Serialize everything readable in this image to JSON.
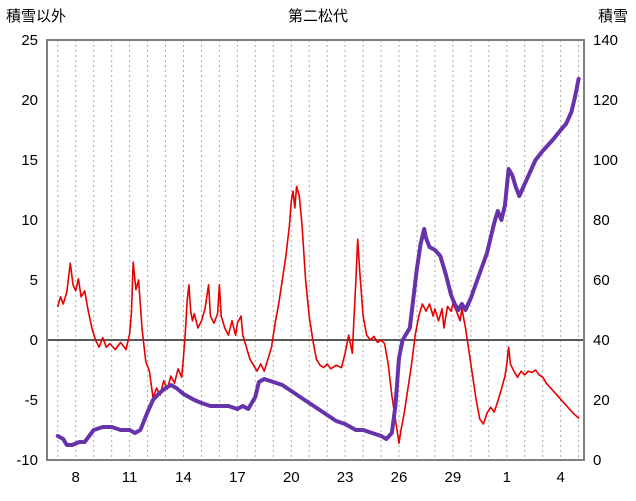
{
  "colors": {
    "temperature": "#e60000",
    "snow": "#6633aa",
    "frame": "#808080",
    "grid": "#aaaaaa",
    "zero_line": "#595959",
    "text": "#000000",
    "background": "#ffffff"
  },
  "chart_data": {
    "type": "line",
    "title": "第二松代",
    "left_axis": {
      "label": "積雪以外",
      "min": -10,
      "max": 25,
      "ticks": [
        25,
        20,
        15,
        10,
        5,
        0,
        -5,
        -10
      ]
    },
    "right_axis": {
      "label": "積雪",
      "min": 0,
      "max": 140,
      "ticks": [
        140,
        120,
        100,
        80,
        60,
        40,
        20,
        0
      ]
    },
    "x_axis": {
      "min": 6.4,
      "max": 36.3,
      "grid_interval": 1,
      "tick_days": [
        8,
        11,
        14,
        17,
        20,
        23,
        26,
        29,
        32,
        35
      ],
      "tick_labels": [
        "8",
        "11",
        "14",
        "17",
        "20",
        "23",
        "26",
        "29",
        "1",
        "4"
      ]
    },
    "series": [
      {
        "name": "積雪以外",
        "id": "temperature-line",
        "axis": "left",
        "color": "#e60000",
        "width": 1.6,
        "points": [
          [
            7.0,
            2.8
          ],
          [
            7.15,
            3.6
          ],
          [
            7.3,
            3.0
          ],
          [
            7.5,
            4.0
          ],
          [
            7.7,
            6.4
          ],
          [
            7.85,
            4.6
          ],
          [
            8.0,
            4.1
          ],
          [
            8.15,
            5.1
          ],
          [
            8.3,
            3.6
          ],
          [
            8.5,
            4.1
          ],
          [
            8.7,
            2.4
          ],
          [
            8.9,
            1.0
          ],
          [
            9.1,
            0.0
          ],
          [
            9.3,
            -0.6
          ],
          [
            9.5,
            0.2
          ],
          [
            9.7,
            -0.6
          ],
          [
            9.9,
            -0.3
          ],
          [
            10.2,
            -0.8
          ],
          [
            10.5,
            -0.2
          ],
          [
            10.8,
            -0.8
          ],
          [
            11.0,
            0.5
          ],
          [
            11.1,
            2.2
          ],
          [
            11.2,
            6.5
          ],
          [
            11.35,
            4.2
          ],
          [
            11.5,
            5.0
          ],
          [
            11.7,
            0.8
          ],
          [
            11.9,
            -1.8
          ],
          [
            12.1,
            -2.6
          ],
          [
            12.3,
            -4.8
          ],
          [
            12.5,
            -4.0
          ],
          [
            12.7,
            -4.6
          ],
          [
            12.9,
            -3.4
          ],
          [
            13.1,
            -4.1
          ],
          [
            13.3,
            -3.0
          ],
          [
            13.5,
            -3.6
          ],
          [
            13.7,
            -2.4
          ],
          [
            13.9,
            -3.1
          ],
          [
            14.0,
            -1.4
          ],
          [
            14.1,
            0.6
          ],
          [
            14.2,
            3.2
          ],
          [
            14.3,
            4.6
          ],
          [
            14.4,
            2.4
          ],
          [
            14.5,
            1.6
          ],
          [
            14.6,
            2.2
          ],
          [
            14.8,
            1.0
          ],
          [
            15.0,
            1.6
          ],
          [
            15.2,
            2.6
          ],
          [
            15.4,
            4.6
          ],
          [
            15.5,
            2.0
          ],
          [
            15.7,
            1.4
          ],
          [
            15.9,
            2.2
          ],
          [
            16.0,
            4.6
          ],
          [
            16.1,
            2.0
          ],
          [
            16.3,
            1.0
          ],
          [
            16.5,
            0.4
          ],
          [
            16.7,
            1.6
          ],
          [
            16.9,
            0.4
          ],
          [
            17.0,
            1.4
          ],
          [
            17.2,
            2.0
          ],
          [
            17.3,
            0.4
          ],
          [
            17.5,
            -0.6
          ],
          [
            17.7,
            -1.6
          ],
          [
            17.9,
            -2.1
          ],
          [
            18.1,
            -2.6
          ],
          [
            18.3,
            -2.0
          ],
          [
            18.5,
            -2.6
          ],
          [
            18.7,
            -1.6
          ],
          [
            18.9,
            -0.6
          ],
          [
            19.1,
            1.4
          ],
          [
            19.3,
            3.0
          ],
          [
            19.5,
            5.0
          ],
          [
            19.7,
            7.0
          ],
          [
            19.9,
            9.6
          ],
          [
            20.0,
            11.6
          ],
          [
            20.1,
            12.4
          ],
          [
            20.2,
            11.0
          ],
          [
            20.3,
            12.8
          ],
          [
            20.45,
            12.0
          ],
          [
            20.6,
            9.6
          ],
          [
            20.8,
            5.0
          ],
          [
            21.0,
            2.0
          ],
          [
            21.2,
            0.0
          ],
          [
            21.4,
            -1.6
          ],
          [
            21.6,
            -2.1
          ],
          [
            21.8,
            -2.3
          ],
          [
            22.0,
            -2.0
          ],
          [
            22.2,
            -2.4
          ],
          [
            22.5,
            -2.1
          ],
          [
            22.8,
            -2.3
          ],
          [
            23.0,
            -1.1
          ],
          [
            23.2,
            0.4
          ],
          [
            23.4,
            -1.1
          ],
          [
            23.5,
            2.0
          ],
          [
            23.6,
            5.0
          ],
          [
            23.7,
            8.4
          ],
          [
            23.8,
            6.0
          ],
          [
            23.9,
            4.0
          ],
          [
            24.0,
            2.0
          ],
          [
            24.2,
            0.4
          ],
          [
            24.4,
            0.0
          ],
          [
            24.6,
            0.3
          ],
          [
            24.8,
            -0.2
          ],
          [
            25.0,
            0.0
          ],
          [
            25.2,
            -0.3
          ],
          [
            25.4,
            -2.0
          ],
          [
            25.6,
            -4.6
          ],
          [
            25.8,
            -6.6
          ],
          [
            26.0,
            -8.6
          ],
          [
            26.1,
            -7.6
          ],
          [
            26.3,
            -6.0
          ],
          [
            26.5,
            -4.0
          ],
          [
            26.7,
            -2.0
          ],
          [
            26.9,
            0.4
          ],
          [
            27.1,
            2.0
          ],
          [
            27.3,
            3.0
          ],
          [
            27.5,
            2.4
          ],
          [
            27.7,
            3.0
          ],
          [
            27.9,
            2.0
          ],
          [
            28.0,
            2.6
          ],
          [
            28.2,
            1.6
          ],
          [
            28.4,
            2.6
          ],
          [
            28.5,
            1.0
          ],
          [
            28.7,
            2.8
          ],
          [
            28.9,
            2.4
          ],
          [
            29.0,
            3.0
          ],
          [
            29.2,
            2.4
          ],
          [
            29.4,
            1.6
          ],
          [
            29.5,
            2.6
          ],
          [
            29.7,
            1.0
          ],
          [
            29.9,
            -1.0
          ],
          [
            30.1,
            -3.0
          ],
          [
            30.3,
            -5.0
          ],
          [
            30.5,
            -6.6
          ],
          [
            30.7,
            -7.0
          ],
          [
            30.9,
            -6.1
          ],
          [
            31.1,
            -5.6
          ],
          [
            31.3,
            -6.0
          ],
          [
            31.5,
            -5.1
          ],
          [
            31.7,
            -4.1
          ],
          [
            31.9,
            -3.0
          ],
          [
            32.0,
            -2.0
          ],
          [
            32.1,
            -0.6
          ],
          [
            32.2,
            -2.0
          ],
          [
            32.4,
            -2.6
          ],
          [
            32.6,
            -3.1
          ],
          [
            32.8,
            -2.6
          ],
          [
            33.0,
            -2.9
          ],
          [
            33.2,
            -2.6
          ],
          [
            33.4,
            -2.7
          ],
          [
            33.6,
            -2.5
          ],
          [
            33.8,
            -2.9
          ],
          [
            34.0,
            -3.1
          ],
          [
            34.2,
            -3.6
          ],
          [
            34.5,
            -4.1
          ],
          [
            34.8,
            -4.6
          ],
          [
            35.1,
            -5.1
          ],
          [
            35.4,
            -5.6
          ],
          [
            35.7,
            -6.1
          ],
          [
            36.0,
            -6.5
          ]
        ]
      },
      {
        "name": "積雪",
        "id": "snow-line",
        "axis": "right",
        "color": "#6633aa",
        "width": 4,
        "points": [
          [
            7.0,
            8
          ],
          [
            7.3,
            7
          ],
          [
            7.5,
            5
          ],
          [
            7.8,
            5
          ],
          [
            8.2,
            6
          ],
          [
            8.5,
            6
          ],
          [
            9.0,
            10
          ],
          [
            9.5,
            11
          ],
          [
            10.0,
            11
          ],
          [
            10.5,
            10
          ],
          [
            11.0,
            10
          ],
          [
            11.3,
            9
          ],
          [
            11.6,
            10
          ],
          [
            12.0,
            16
          ],
          [
            12.3,
            20
          ],
          [
            12.6,
            22
          ],
          [
            13.0,
            24
          ],
          [
            13.3,
            25
          ],
          [
            13.6,
            24
          ],
          [
            14.0,
            22
          ],
          [
            14.3,
            21
          ],
          [
            14.6,
            20
          ],
          [
            15.0,
            19
          ],
          [
            15.5,
            18
          ],
          [
            16.0,
            18
          ],
          [
            16.5,
            18
          ],
          [
            17.0,
            17
          ],
          [
            17.3,
            18
          ],
          [
            17.6,
            17
          ],
          [
            18.0,
            21
          ],
          [
            18.2,
            26
          ],
          [
            18.5,
            27
          ],
          [
            19.0,
            26
          ],
          [
            19.5,
            25
          ],
          [
            20.0,
            23
          ],
          [
            20.5,
            21
          ],
          [
            21.0,
            19
          ],
          [
            21.5,
            17
          ],
          [
            22.0,
            15
          ],
          [
            22.5,
            13
          ],
          [
            23.0,
            12
          ],
          [
            23.3,
            11
          ],
          [
            23.6,
            10
          ],
          [
            24.0,
            10
          ],
          [
            24.5,
            9
          ],
          [
            25.0,
            8
          ],
          [
            25.3,
            7
          ],
          [
            25.6,
            9
          ],
          [
            25.8,
            18
          ],
          [
            26.0,
            34
          ],
          [
            26.2,
            40
          ],
          [
            26.4,
            42
          ],
          [
            26.6,
            44
          ],
          [
            26.8,
            54
          ],
          [
            27.0,
            64
          ],
          [
            27.2,
            72
          ],
          [
            27.4,
            77
          ],
          [
            27.5,
            74
          ],
          [
            27.7,
            71
          ],
          [
            28.0,
            70
          ],
          [
            28.3,
            68
          ],
          [
            28.6,
            62
          ],
          [
            28.9,
            55
          ],
          [
            29.1,
            52
          ],
          [
            29.3,
            50
          ],
          [
            29.5,
            52
          ],
          [
            29.7,
            50
          ],
          [
            30.0,
            54
          ],
          [
            30.3,
            59
          ],
          [
            30.6,
            64
          ],
          [
            30.9,
            69
          ],
          [
            31.1,
            74
          ],
          [
            31.3,
            79
          ],
          [
            31.5,
            83
          ],
          [
            31.7,
            80
          ],
          [
            31.9,
            85
          ],
          [
            32.1,
            97
          ],
          [
            32.3,
            95
          ],
          [
            32.5,
            91
          ],
          [
            32.7,
            88
          ],
          [
            33.0,
            92
          ],
          [
            33.3,
            96
          ],
          [
            33.6,
            100
          ],
          [
            34.0,
            103
          ],
          [
            34.3,
            105
          ],
          [
            34.6,
            107
          ],
          [
            35.0,
            110
          ],
          [
            35.3,
            112
          ],
          [
            35.6,
            116
          ],
          [
            35.8,
            121
          ],
          [
            36.0,
            127
          ]
        ]
      }
    ]
  }
}
